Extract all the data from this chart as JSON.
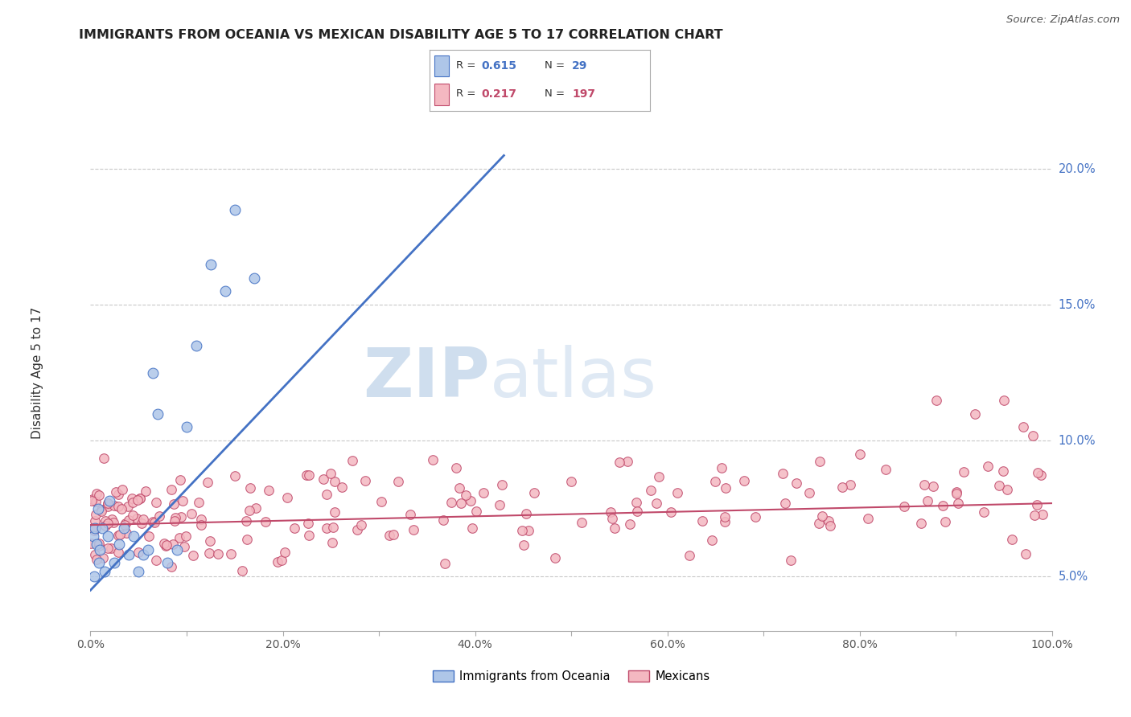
{
  "title": "IMMIGRANTS FROM OCEANIA VS MEXICAN DISABILITY AGE 5 TO 17 CORRELATION CHART",
  "source": "Source: ZipAtlas.com",
  "ylabel": "Disability Age 5 to 17",
  "xlim": [
    0,
    100
  ],
  "ylim": [
    3.0,
    22.0
  ],
  "y_ticks": [
    5.0,
    10.0,
    15.0,
    20.0
  ],
  "r_oceania": 0.615,
  "n_oceania": 29,
  "r_mexican": 0.217,
  "n_mexican": 197,
  "color_oceania": "#aec6e8",
  "color_mexican": "#f4b8c1",
  "line_color_oceania": "#4472c4",
  "line_color_mexican": "#c0496a",
  "bg_color": "#ffffff",
  "grid_color": "#c8c8c8",
  "watermark_zip": "ZIP",
  "watermark_atlas": "atlas",
  "oce_line_x0": 0,
  "oce_line_y0": 4.5,
  "oce_line_x1": 43,
  "oce_line_y1": 20.5,
  "mex_line_x0": 0,
  "mex_line_y0": 6.9,
  "mex_line_x1": 100,
  "mex_line_y1": 7.7
}
